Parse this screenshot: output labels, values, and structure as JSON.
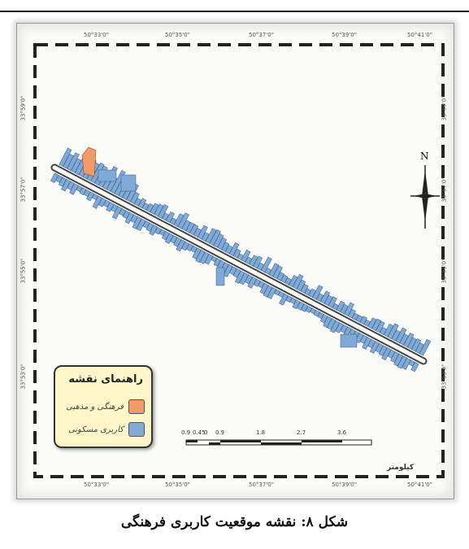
{
  "caption": "شکل ۸: نقشه موقعیت کاربری فرهنگی",
  "legend": {
    "title": "راهنمای نقشه",
    "items": [
      {
        "label": "فرهنگی و مذهبی",
        "color": "#f29a6a",
        "icon": "orange-parcel-swatch"
      },
      {
        "label": "کاربری مسکونی",
        "color": "#7fa9d6",
        "icon": "blue-parcel-swatch"
      }
    ]
  },
  "north_arrow": {
    "letter": "N"
  },
  "scale_bar": {
    "title": "کیلومتر",
    "labels": [
      "0.9",
      "0.45",
      "0",
      "0.9",
      "1.8",
      "2.7",
      "3.6"
    ]
  },
  "colors": {
    "road": "#ffffff",
    "road_edge": "#444444",
    "residential": "#7fa9d6",
    "cultural": "#f29a6a",
    "legend_bg": "#fdf6c8"
  },
  "grid_top_labels": [
    "50°33'0\"",
    "50°35'0\"",
    "50°37'0\"",
    "50°39'0\"",
    "50°41'0\""
  ],
  "grid_bottom_labels": [
    "50°33'0\"",
    "50°35'0\"",
    "50°37'0\"",
    "50°39'0\"",
    "50°41'0\""
  ],
  "grid_side_labels": [
    "33°59'0\"",
    "33°57'0\"",
    "33°55'0\"",
    "33°53'0\""
  ]
}
